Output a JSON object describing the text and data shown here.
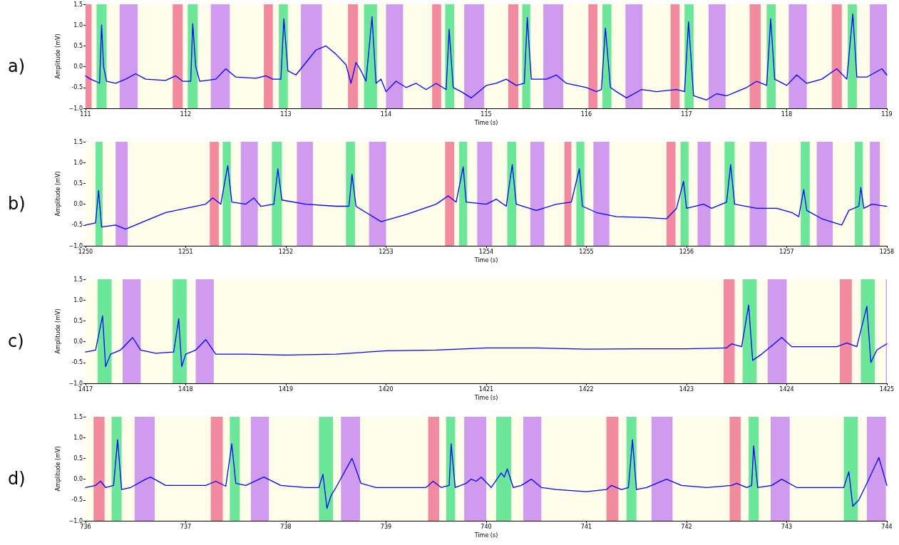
{
  "chart_data": [
    {
      "type": "line",
      "title": "a)",
      "xlabel": "Time (s)",
      "ylabel": "Amplitude (mV)",
      "xlim": [
        111,
        119
      ],
      "xticks": [
        111,
        112,
        113,
        114,
        115,
        116,
        117,
        118,
        119
      ],
      "ylim": [
        -1,
        1.5
      ],
      "yticks": [
        {
          "value": -1,
          "label": "−1.0"
        },
        -0.5,
        {
          "value": 0,
          "label": "0.0"
        },
        0.5,
        {
          "value": 1,
          "label": "1.0"
        },
        1.5
      ],
      "grid": false,
      "marker": "none",
      "line_style": "solid",
      "series": [
        {
          "color": "#0000ff",
          "x": [
            111,
            111.05,
            111.1,
            111.14,
            111.16,
            111.18,
            111.21,
            111.3,
            111.4,
            111.5,
            111.6,
            111.8,
            111.9,
            111.97,
            112.05,
            112.07,
            112.1,
            112.14,
            112.3,
            112.4,
            112.5,
            112.7,
            112.8,
            112.87,
            112.95,
            112.98,
            113.02,
            113.1,
            113.2,
            113.3,
            113.4,
            113.5,
            113.6,
            113.65,
            113.7,
            113.75,
            113.8,
            113.86,
            113.9,
            113.95,
            114,
            114.1,
            114.2,
            114.3,
            114.4,
            114.5,
            114.6,
            114.63,
            114.67,
            114.75,
            114.85,
            115,
            115.1,
            115.2,
            115.3,
            115.38,
            115.41,
            115.45,
            115.6,
            115.7,
            115.8,
            116,
            116.1,
            116.15,
            116.19,
            116.24,
            116.3,
            116.4,
            116.55,
            116.7,
            116.9,
            116.98,
            117.02,
            117.07,
            117.2,
            117.3,
            117.4,
            117.5,
            117.6,
            117.7,
            117.8,
            117.84,
            117.88,
            118,
            118.1,
            118.2,
            118.35,
            118.5,
            118.6,
            118.66,
            118.7,
            118.8,
            118.95,
            119
          ],
          "values": [
            -0.22,
            -0.3,
            -0.35,
            -0.4,
            1.0,
            0.0,
            -0.35,
            -0.4,
            -0.3,
            -0.17,
            -0.3,
            -0.33,
            -0.22,
            -0.35,
            -0.35,
            1.03,
            0.0,
            -0.35,
            -0.3,
            -0.05,
            -0.25,
            -0.28,
            -0.22,
            -0.3,
            -0.3,
            1.15,
            -0.1,
            -0.2,
            0.1,
            0.4,
            0.5,
            0.3,
            0.05,
            -0.4,
            0.1,
            -0.1,
            -0.35,
            1.2,
            -0.4,
            -0.3,
            -0.6,
            -0.35,
            -0.5,
            -0.4,
            -0.55,
            -0.4,
            -0.55,
            0.9,
            -0.5,
            -0.6,
            -0.75,
            -0.45,
            -0.4,
            -0.3,
            -0.45,
            -0.4,
            1.18,
            -0.3,
            -0.3,
            -0.2,
            -0.4,
            -0.5,
            -0.6,
            -0.55,
            0.93,
            -0.5,
            -0.6,
            -0.75,
            -0.55,
            -0.6,
            -0.55,
            -0.6,
            1.08,
            -0.7,
            -0.8,
            -0.65,
            -0.7,
            -0.6,
            -0.5,
            -0.35,
            -0.45,
            1.15,
            -0.3,
            -0.45,
            -0.2,
            -0.4,
            -0.3,
            -0.05,
            -0.3,
            1.27,
            -0.25,
            -0.25,
            -0.05,
            -0.2
          ]
        }
      ],
      "bands": [
        {
          "axis": "x",
          "from": 111,
          "to": 119,
          "color": "#fdfde9"
        },
        {
          "axis": "x",
          "from": 111.0,
          "to": 111.06,
          "color": "#f28b9f"
        },
        {
          "axis": "x",
          "from": 111.87,
          "to": 111.97,
          "color": "#f28b9f"
        },
        {
          "axis": "x",
          "from": 112.78,
          "to": 112.87,
          "color": "#f28b9f"
        },
        {
          "axis": "x",
          "from": 113.62,
          "to": 113.72,
          "color": "#f28b9f"
        },
        {
          "axis": "x",
          "from": 114.46,
          "to": 114.55,
          "color": "#f28b9f"
        },
        {
          "axis": "x",
          "from": 115.22,
          "to": 115.32,
          "color": "#f28b9f"
        },
        {
          "axis": "x",
          "from": 116.02,
          "to": 116.11,
          "color": "#f28b9f"
        },
        {
          "axis": "x",
          "from": 116.84,
          "to": 116.93,
          "color": "#f28b9f"
        },
        {
          "axis": "x",
          "from": 117.63,
          "to": 117.74,
          "color": "#f28b9f"
        },
        {
          "axis": "x",
          "from": 118.45,
          "to": 118.55,
          "color": "#f28b9f"
        },
        {
          "axis": "x",
          "from": 111.11,
          "to": 111.21,
          "color": "#6ce79a"
        },
        {
          "axis": "x",
          "from": 112.02,
          "to": 112.12,
          "color": "#6ce79a"
        },
        {
          "axis": "x",
          "from": 112.93,
          "to": 113.02,
          "color": "#6ce79a"
        },
        {
          "axis": "x",
          "from": 113.78,
          "to": 113.91,
          "color": "#6ce79a"
        },
        {
          "axis": "x",
          "from": 114.59,
          "to": 114.68,
          "color": "#6ce79a"
        },
        {
          "axis": "x",
          "from": 115.36,
          "to": 115.44,
          "color": "#6ce79a"
        },
        {
          "axis": "x",
          "from": 116.16,
          "to": 116.25,
          "color": "#6ce79a"
        },
        {
          "axis": "x",
          "from": 116.98,
          "to": 117.07,
          "color": "#6ce79a"
        },
        {
          "axis": "x",
          "from": 117.8,
          "to": 117.89,
          "color": "#6ce79a"
        },
        {
          "axis": "x",
          "from": 118.61,
          "to": 118.7,
          "color": "#6ce79a"
        },
        {
          "axis": "x",
          "from": 111.34,
          "to": 111.52,
          "color": "#d09bef"
        },
        {
          "axis": "x",
          "from": 112.25,
          "to": 112.44,
          "color": "#d09bef"
        },
        {
          "axis": "x",
          "from": 113.15,
          "to": 113.36,
          "color": "#d09bef"
        },
        {
          "axis": "x",
          "from": 114.0,
          "to": 114.17,
          "color": "#d09bef"
        },
        {
          "axis": "x",
          "from": 114.78,
          "to": 114.98,
          "color": "#d09bef"
        },
        {
          "axis": "x",
          "from": 115.57,
          "to": 115.77,
          "color": "#d09bef"
        },
        {
          "axis": "x",
          "from": 116.39,
          "to": 116.56,
          "color": "#d09bef"
        },
        {
          "axis": "x",
          "from": 117.22,
          "to": 117.39,
          "color": "#d09bef"
        },
        {
          "axis": "x",
          "from": 118.02,
          "to": 118.2,
          "color": "#d09bef"
        },
        {
          "axis": "x",
          "from": 118.83,
          "to": 119,
          "color": "#d09bef"
        }
      ]
    },
    {
      "type": "line",
      "title": "b)",
      "xlabel": "Time (s)",
      "ylabel": "Amplitude (mV)",
      "xlim": [
        1250,
        1258
      ],
      "xticks": [
        1250,
        1251,
        1252,
        1253,
        1254,
        1255,
        1256,
        1257,
        1258
      ],
      "ylim": [
        -1,
        1.5
      ],
      "yticks": [
        {
          "value": -1,
          "label": "−1.0"
        },
        -0.5,
        {
          "value": 0,
          "label": "0.0"
        },
        0.5,
        {
          "value": 1,
          "label": "1.0"
        },
        1.5
      ],
      "grid": false,
      "marker": "none",
      "line_style": "solid",
      "series": [
        {
          "color": "#0000ff",
          "x": [
            1250,
            1250.1,
            1250.13,
            1250.16,
            1250.3,
            1250.4,
            1250.6,
            1250.8,
            1251,
            1251.2,
            1251.27,
            1251.35,
            1251.42,
            1251.46,
            1251.6,
            1251.68,
            1251.75,
            1251.88,
            1251.92,
            1251.96,
            1252.2,
            1252.5,
            1252.63,
            1252.66,
            1252.7,
            1252.8,
            1252.95,
            1253.2,
            1253.5,
            1253.62,
            1253.7,
            1253.77,
            1253.8,
            1254,
            1254.1,
            1254.2,
            1254.26,
            1254.3,
            1254.5,
            1254.7,
            1254.85,
            1254.93,
            1254.96,
            1255.1,
            1255.3,
            1255.6,
            1255.8,
            1255.9,
            1255.97,
            1256,
            1256.17,
            1256.25,
            1256.4,
            1256.44,
            1256.48,
            1256.7,
            1256.9,
            1257.05,
            1257.12,
            1257.17,
            1257.2,
            1257.35,
            1257.55,
            1257.62,
            1257.72,
            1257.74,
            1257.77,
            1257.85,
            1258
          ],
          "values": [
            -0.5,
            -0.45,
            0.33,
            -0.55,
            -0.5,
            -0.6,
            -0.4,
            -0.2,
            -0.1,
            0.0,
            0.15,
            0.0,
            0.93,
            0.05,
            0.0,
            0.15,
            -0.05,
            0.0,
            0.85,
            0.1,
            0.0,
            -0.05,
            -0.05,
            0.72,
            -0.05,
            -0.2,
            -0.42,
            -0.25,
            0.0,
            0.2,
            0.05,
            0.9,
            0.05,
            0.0,
            0.12,
            -0.05,
            0.95,
            0.0,
            -0.15,
            0.0,
            0.05,
            0.85,
            -0.05,
            -0.2,
            -0.3,
            -0.32,
            -0.35,
            -0.1,
            0.55,
            -0.1,
            0.0,
            -0.1,
            0.05,
            0.95,
            0.0,
            -0.1,
            -0.1,
            -0.2,
            -0.3,
            0.35,
            -0.15,
            -0.35,
            -0.5,
            -0.15,
            -0.05,
            0.4,
            -0.1,
            0.0,
            -0.05
          ]
        }
      ],
      "bands": [
        {
          "axis": "x",
          "from": 1250,
          "to": 1258,
          "color": "#fdfde9"
        },
        {
          "axis": "x",
          "from": 1251.24,
          "to": 1251.33,
          "color": "#f28b9f"
        },
        {
          "axis": "x",
          "from": 1253.59,
          "to": 1253.68,
          "color": "#f28b9f"
        },
        {
          "axis": "x",
          "from": 1254.78,
          "to": 1254.85,
          "color": "#f28b9f"
        },
        {
          "axis": "x",
          "from": 1255.8,
          "to": 1255.89,
          "color": "#f28b9f"
        },
        {
          "axis": "x",
          "from": 1250.1,
          "to": 1250.17,
          "color": "#6ce79a"
        },
        {
          "axis": "x",
          "from": 1251.37,
          "to": 1251.45,
          "color": "#6ce79a"
        },
        {
          "axis": "x",
          "from": 1251.86,
          "to": 1251.96,
          "color": "#6ce79a"
        },
        {
          "axis": "x",
          "from": 1252.6,
          "to": 1252.69,
          "color": "#6ce79a"
        },
        {
          "axis": "x",
          "from": 1253.73,
          "to": 1253.81,
          "color": "#6ce79a"
        },
        {
          "axis": "x",
          "from": 1254.21,
          "to": 1254.3,
          "color": "#6ce79a"
        },
        {
          "axis": "x",
          "from": 1254.9,
          "to": 1254.98,
          "color": "#6ce79a"
        },
        {
          "axis": "x",
          "from": 1255.94,
          "to": 1256.02,
          "color": "#6ce79a"
        },
        {
          "axis": "x",
          "from": 1256.38,
          "to": 1256.48,
          "color": "#6ce79a"
        },
        {
          "axis": "x",
          "from": 1257.14,
          "to": 1257.23,
          "color": "#6ce79a"
        },
        {
          "axis": "x",
          "from": 1257.68,
          "to": 1257.76,
          "color": "#6ce79a"
        },
        {
          "axis": "x",
          "from": 1250.3,
          "to": 1250.42,
          "color": "#d09bef"
        },
        {
          "axis": "x",
          "from": 1251.55,
          "to": 1251.72,
          "color": "#d09bef"
        },
        {
          "axis": "x",
          "from": 1252.11,
          "to": 1252.27,
          "color": "#d09bef"
        },
        {
          "axis": "x",
          "from": 1252.83,
          "to": 1253.0,
          "color": "#d09bef"
        },
        {
          "axis": "x",
          "from": 1253.91,
          "to": 1254.06,
          "color": "#d09bef"
        },
        {
          "axis": "x",
          "from": 1254.44,
          "to": 1254.58,
          "color": "#d09bef"
        },
        {
          "axis": "x",
          "from": 1255.07,
          "to": 1255.23,
          "color": "#d09bef"
        },
        {
          "axis": "x",
          "from": 1256.11,
          "to": 1256.24,
          "color": "#d09bef"
        },
        {
          "axis": "x",
          "from": 1256.63,
          "to": 1256.8,
          "color": "#d09bef"
        },
        {
          "axis": "x",
          "from": 1257.3,
          "to": 1257.46,
          "color": "#d09bef"
        },
        {
          "axis": "x",
          "from": 1257.83,
          "to": 1257.93,
          "color": "#d09bef"
        }
      ]
    },
    {
      "type": "line",
      "title": "c)",
      "xlabel": "Time (s)",
      "ylabel": "Amplitude (mV)",
      "xlim": [
        1417,
        1425
      ],
      "xticks": [
        1417,
        1418,
        1419,
        1420,
        1421,
        1422,
        1423,
        1424,
        1425
      ],
      "ylim": [
        -1,
        1.5
      ],
      "yticks": [
        {
          "value": -1,
          "label": "−1.0"
        },
        -0.5,
        {
          "value": 0,
          "label": "0.0"
        },
        0.5,
        {
          "value": 1,
          "label": "1.0"
        },
        1.5
      ],
      "grid": false,
      "marker": "none",
      "line_style": "solid",
      "series": [
        {
          "color": "#0000ff",
          "x": [
            1417,
            1417.1,
            1417.17,
            1417.2,
            1417.25,
            1417.35,
            1417.47,
            1417.55,
            1417.7,
            1417.88,
            1417.93,
            1417.96,
            1418,
            1418.1,
            1418.2,
            1418.3,
            1418.6,
            1419,
            1419.5,
            1420,
            1420.5,
            1421,
            1421.5,
            1422,
            1422.5,
            1423,
            1423.4,
            1423.45,
            1423.55,
            1423.62,
            1423.66,
            1423.75,
            1423.85,
            1423.95,
            1424.05,
            1424.3,
            1424.5,
            1424.6,
            1424.7,
            1424.8,
            1424.84,
            1424.9,
            1425
          ],
          "values": [
            -0.25,
            -0.2,
            0.62,
            -0.6,
            -0.3,
            -0.2,
            0.1,
            -0.2,
            -0.28,
            -0.25,
            0.55,
            -0.6,
            -0.3,
            -0.2,
            0.05,
            -0.3,
            -0.3,
            -0.32,
            -0.3,
            -0.22,
            -0.2,
            -0.15,
            -0.15,
            -0.18,
            -0.17,
            -0.17,
            -0.15,
            -0.05,
            -0.12,
            0.88,
            -0.45,
            -0.3,
            -0.1,
            0.1,
            -0.12,
            -0.12,
            -0.12,
            -0.03,
            -0.12,
            0.85,
            -0.5,
            -0.2,
            -0.05
          ]
        }
      ],
      "bands": [
        {
          "axis": "x",
          "from": 1417,
          "to": 1425,
          "color": "#fdfde9"
        },
        {
          "axis": "x",
          "from": 1423.37,
          "to": 1423.48,
          "color": "#f28b9f"
        },
        {
          "axis": "x",
          "from": 1424.53,
          "to": 1424.65,
          "color": "#f28b9f"
        },
        {
          "axis": "x",
          "from": 1417.12,
          "to": 1417.26,
          "color": "#6ce79a"
        },
        {
          "axis": "x",
          "from": 1417.87,
          "to": 1418.01,
          "color": "#6ce79a"
        },
        {
          "axis": "x",
          "from": 1423.56,
          "to": 1423.7,
          "color": "#6ce79a"
        },
        {
          "axis": "x",
          "from": 1424.74,
          "to": 1424.88,
          "color": "#6ce79a"
        },
        {
          "axis": "x",
          "from": 1417.37,
          "to": 1417.55,
          "color": "#d09bef"
        },
        {
          "axis": "x",
          "from": 1418.1,
          "to": 1418.28,
          "color": "#d09bef"
        },
        {
          "axis": "x",
          "from": 1423.81,
          "to": 1424.0,
          "color": "#d09bef"
        },
        {
          "axis": "x",
          "from": 1424.99,
          "to": 1425,
          "color": "#d09bef"
        }
      ]
    },
    {
      "type": "line",
      "title": "d)",
      "xlabel": "Time (s)",
      "ylabel": "Amplitude (mV)",
      "xlim": [
        736,
        744
      ],
      "xticks": [
        736,
        737,
        738,
        739,
        740,
        741,
        742,
        743,
        744
      ],
      "ylim": [
        -1,
        1.5
      ],
      "yticks": [
        {
          "value": -1,
          "label": "−1.0"
        },
        -0.5,
        {
          "value": 0,
          "label": "0.0"
        },
        0.5,
        {
          "value": 1,
          "label": "1.0"
        },
        1.5
      ],
      "grid": false,
      "marker": "none",
      "line_style": "solid",
      "series": [
        {
          "color": "#0000ff",
          "x": [
            736,
            736.1,
            736.15,
            736.2,
            736.28,
            736.32,
            736.36,
            736.45,
            736.6,
            736.65,
            736.8,
            737,
            737.2,
            737.3,
            737.4,
            737.46,
            737.5,
            737.6,
            737.78,
            737.95,
            738.2,
            738.33,
            738.37,
            738.41,
            738.45,
            738.5,
            738.66,
            738.75,
            738.9,
            739.2,
            739.4,
            739.47,
            739.55,
            739.63,
            739.65,
            739.69,
            739.8,
            739.85,
            739.9,
            739.95,
            740.05,
            740.15,
            740.18,
            740.21,
            740.27,
            740.35,
            740.45,
            740.55,
            740.7,
            741,
            741.2,
            741.25,
            741.35,
            741.42,
            741.46,
            741.5,
            741.6,
            741.8,
            741.95,
            742.2,
            742.45,
            742.5,
            742.6,
            742.65,
            742.67,
            742.71,
            742.85,
            742.95,
            743.1,
            743.4,
            743.57,
            743.62,
            743.66,
            743.72,
            743.8,
            743.92,
            744
          ],
          "values": [
            -0.2,
            -0.15,
            -0.05,
            -0.2,
            -0.15,
            0.95,
            -0.25,
            -0.2,
            0.0,
            0.05,
            -0.15,
            -0.15,
            -0.15,
            -0.05,
            -0.17,
            0.85,
            -0.1,
            -0.15,
            0.05,
            -0.15,
            -0.2,
            -0.2,
            0.12,
            -0.7,
            -0.4,
            -0.2,
            0.5,
            -0.1,
            -0.2,
            -0.2,
            -0.2,
            -0.05,
            -0.2,
            -0.15,
            0.85,
            -0.2,
            -0.1,
            0.0,
            -0.05,
            0.05,
            -0.2,
            0.15,
            0.05,
            0.25,
            -0.2,
            -0.15,
            0.0,
            -0.2,
            -0.25,
            -0.3,
            -0.25,
            -0.15,
            -0.25,
            -0.2,
            0.95,
            -0.25,
            -0.2,
            0.0,
            -0.15,
            -0.2,
            -0.15,
            -0.1,
            -0.2,
            -0.15,
            0.8,
            -0.2,
            -0.15,
            0.0,
            -0.2,
            -0.2,
            -0.2,
            0.18,
            -0.65,
            -0.5,
            -0.1,
            0.52,
            -0.15
          ]
        }
      ],
      "bands": [
        {
          "axis": "x",
          "from": 736,
          "to": 744,
          "color": "#fdfde9"
        },
        {
          "axis": "x",
          "from": 736.08,
          "to": 736.19,
          "color": "#f28b9f"
        },
        {
          "axis": "x",
          "from": 737.25,
          "to": 737.37,
          "color": "#f28b9f"
        },
        {
          "axis": "x",
          "from": 739.42,
          "to": 739.53,
          "color": "#f28b9f"
        },
        {
          "axis": "x",
          "from": 741.2,
          "to": 741.32,
          "color": "#f28b9f"
        },
        {
          "axis": "x",
          "from": 742.43,
          "to": 742.54,
          "color": "#f28b9f"
        },
        {
          "axis": "x",
          "from": 736.26,
          "to": 736.36,
          "color": "#6ce79a"
        },
        {
          "axis": "x",
          "from": 737.44,
          "to": 737.54,
          "color": "#6ce79a"
        },
        {
          "axis": "x",
          "from": 738.33,
          "to": 738.47,
          "color": "#6ce79a"
        },
        {
          "axis": "x",
          "from": 739.6,
          "to": 739.69,
          "color": "#6ce79a"
        },
        {
          "axis": "x",
          "from": 740.1,
          "to": 740.25,
          "color": "#6ce79a"
        },
        {
          "axis": "x",
          "from": 741.4,
          "to": 741.5,
          "color": "#6ce79a"
        },
        {
          "axis": "x",
          "from": 742.62,
          "to": 742.72,
          "color": "#6ce79a"
        },
        {
          "axis": "x",
          "from": 743.57,
          "to": 743.71,
          "color": "#6ce79a"
        },
        {
          "axis": "x",
          "from": 736.49,
          "to": 736.69,
          "color": "#d09bef"
        },
        {
          "axis": "x",
          "from": 737.65,
          "to": 737.83,
          "color": "#d09bef"
        },
        {
          "axis": "x",
          "from": 738.55,
          "to": 738.74,
          "color": "#d09bef"
        },
        {
          "axis": "x",
          "from": 739.78,
          "to": 740.0,
          "color": "#d09bef"
        },
        {
          "axis": "x",
          "from": 740.37,
          "to": 740.55,
          "color": "#d09bef"
        },
        {
          "axis": "x",
          "from": 741.65,
          "to": 741.86,
          "color": "#d09bef"
        },
        {
          "axis": "x",
          "from": 742.84,
          "to": 743.03,
          "color": "#d09bef"
        },
        {
          "axis": "x",
          "from": 743.8,
          "to": 743.99,
          "color": "#d09bef"
        }
      ]
    }
  ]
}
